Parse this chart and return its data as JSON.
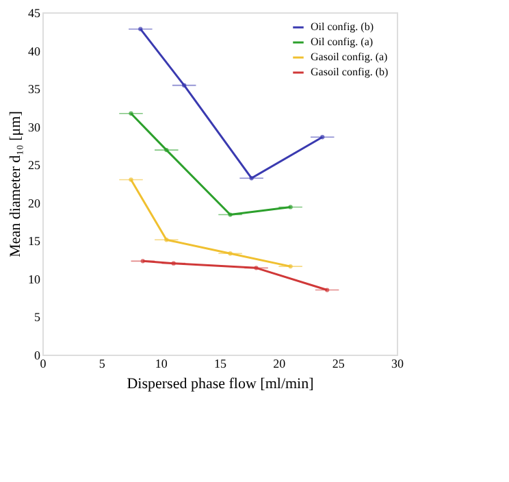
{
  "chart_data": {
    "type": "line",
    "xlabel": "Dispersed phase flow [ml/min]",
    "ylabel": "Mean diameter d₁₀ [μm]",
    "xlim": [
      0,
      30
    ],
    "xticks": [
      0,
      5,
      10,
      15,
      20,
      25,
      30
    ],
    "ylim": [
      0,
      45
    ],
    "yticks": [
      0,
      5,
      10,
      15,
      20,
      25,
      30,
      35,
      40,
      45
    ],
    "grid": false,
    "legend": "top right",
    "marker": "circle",
    "line_style": "solid",
    "series": [
      {
        "name": "Oil config. (b)",
        "color": "#3a3ab0",
        "x": [
          8.3,
          12.0,
          17.7,
          23.7
        ],
        "values": [
          42.8,
          35.4,
          23.2,
          28.6
        ],
        "xerrors": [
          1,
          1,
          1,
          1
        ]
      },
      {
        "name": "Oil config. (a)",
        "color": "#2ca02c",
        "x": [
          7.5,
          10.5,
          15.9,
          21.0
        ],
        "values": [
          31.7,
          26.9,
          18.4,
          19.4
        ],
        "xerrors": [
          1,
          1,
          1,
          1
        ]
      },
      {
        "name": "Gasoil config. (a)",
        "color": "#f0c030",
        "x": [
          7.5,
          10.5,
          15.9,
          21.0
        ],
        "values": [
          23.0,
          15.1,
          13.3,
          11.6
        ],
        "xerrors": [
          1,
          1,
          1,
          1
        ]
      },
      {
        "name": "Gasoil config. (b)",
        "color": "#d03838",
        "x": [
          8.5,
          11.1,
          18.1,
          24.1
        ],
        "values": [
          12.3,
          12.0,
          11.4,
          8.5
        ],
        "xerrors": [
          1,
          1,
          1,
          1
        ]
      }
    ]
  }
}
